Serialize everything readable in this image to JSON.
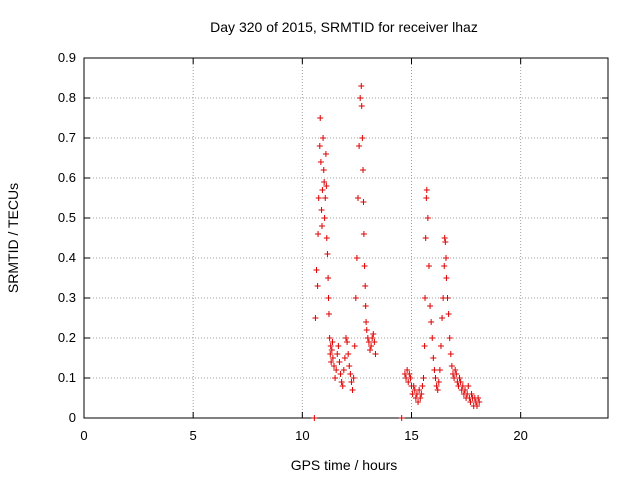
{
  "chart_data": {
    "type": "scatter",
    "title": "Day 320 of 2015, SRMTID for receiver lhaz",
    "xlabel": "GPS time / hours",
    "ylabel": "SRMTID / TECUs",
    "xlim": [
      0,
      24
    ],
    "ylim": [
      0,
      0.9
    ],
    "xticks": [
      0,
      5,
      10,
      15,
      20
    ],
    "xtick_labels": [
      "0",
      "5",
      "10",
      "15",
      "20"
    ],
    "yticks": [
      0,
      0.1,
      0.2,
      0.3,
      0.4,
      0.5,
      0.6,
      0.7,
      0.8,
      0.9
    ],
    "ytick_labels": [
      "0",
      "0.1",
      "0.2",
      "0.3",
      "0.4",
      "0.5",
      "0.6",
      "0.7",
      "0.8",
      "0.9"
    ],
    "grid": true,
    "marker": "+",
    "marker_color": "#dd0000",
    "series": [
      {
        "name": "SRMTID",
        "x": [
          10.6,
          10.65,
          10.7,
          10.72,
          10.75,
          10.8,
          10.82,
          10.85,
          10.88,
          10.9,
          10.92,
          10.95,
          10.98,
          11.0,
          11.02,
          11.05,
          11.08,
          11.1,
          11.12,
          11.15,
          11.18,
          11.2,
          11.22,
          11.25,
          11.28,
          11.3,
          11.32,
          11.35,
          11.38,
          11.4,
          11.45,
          11.5,
          11.55,
          11.6,
          11.65,
          11.7,
          11.75,
          11.8,
          11.85,
          11.9,
          11.95,
          12.0,
          12.05,
          12.1,
          12.15,
          12.2,
          12.25,
          12.3,
          12.35,
          12.4,
          12.45,
          12.5,
          12.55,
          12.6,
          12.65,
          12.7,
          12.72,
          12.75,
          12.78,
          12.8,
          12.82,
          12.85,
          12.88,
          12.9,
          12.92,
          12.95,
          13.0,
          13.05,
          13.1,
          13.15,
          13.2,
          13.25,
          13.3,
          13.35,
          14.7,
          14.75,
          14.8,
          14.85,
          14.9,
          14.95,
          15.0,
          15.05,
          15.1,
          15.15,
          15.2,
          15.25,
          15.3,
          15.35,
          15.4,
          15.45,
          15.5,
          15.55,
          15.6,
          15.62,
          15.65,
          15.68,
          15.7,
          15.75,
          15.8,
          15.85,
          15.9,
          15.95,
          16.0,
          16.05,
          16.1,
          16.15,
          16.2,
          16.25,
          16.3,
          16.35,
          16.4,
          16.45,
          16.5,
          16.52,
          16.55,
          16.58,
          16.6,
          16.65,
          16.7,
          16.75,
          16.8,
          16.85,
          16.9,
          16.95,
          17.0,
          17.05,
          17.1,
          17.15,
          17.2,
          17.25,
          17.3,
          17.35,
          17.4,
          17.45,
          17.5,
          17.55,
          17.6,
          17.65,
          17.7,
          17.75,
          17.8,
          17.85,
          17.9,
          17.95,
          18.0,
          18.05,
          18.1,
          10.55,
          14.55
        ],
        "y": [
          0.25,
          0.37,
          0.33,
          0.46,
          0.55,
          0.68,
          0.75,
          0.64,
          0.52,
          0.48,
          0.57,
          0.7,
          0.62,
          0.59,
          0.5,
          0.55,
          0.66,
          0.58,
          0.45,
          0.41,
          0.35,
          0.3,
          0.26,
          0.2,
          0.16,
          0.18,
          0.14,
          0.17,
          0.19,
          0.15,
          0.13,
          0.1,
          0.12,
          0.16,
          0.18,
          0.14,
          0.11,
          0.09,
          0.08,
          0.12,
          0.15,
          0.2,
          0.19,
          0.16,
          0.13,
          0.11,
          0.09,
          0.07,
          0.1,
          0.18,
          0.3,
          0.4,
          0.55,
          0.68,
          0.8,
          0.83,
          0.78,
          0.7,
          0.62,
          0.54,
          0.46,
          0.38,
          0.33,
          0.28,
          0.24,
          0.22,
          0.2,
          0.19,
          0.17,
          0.18,
          0.2,
          0.21,
          0.19,
          0.16,
          0.11,
          0.1,
          0.12,
          0.09,
          0.11,
          0.1,
          0.08,
          0.06,
          0.08,
          0.07,
          0.05,
          0.06,
          0.04,
          0.07,
          0.05,
          0.06,
          0.08,
          0.1,
          0.18,
          0.3,
          0.45,
          0.55,
          0.57,
          0.5,
          0.38,
          0.28,
          0.24,
          0.2,
          0.15,
          0.12,
          0.1,
          0.08,
          0.07,
          0.09,
          0.12,
          0.18,
          0.25,
          0.3,
          0.38,
          0.45,
          0.44,
          0.4,
          0.35,
          0.3,
          0.26,
          0.2,
          0.16,
          0.13,
          0.11,
          0.1,
          0.12,
          0.11,
          0.09,
          0.08,
          0.1,
          0.09,
          0.07,
          0.08,
          0.06,
          0.07,
          0.05,
          0.06,
          0.08,
          0.05,
          0.04,
          0.06,
          0.05,
          0.03,
          0.05,
          0.04,
          0.03,
          0.05,
          0.04,
          0.0,
          0.0
        ]
      }
    ]
  }
}
